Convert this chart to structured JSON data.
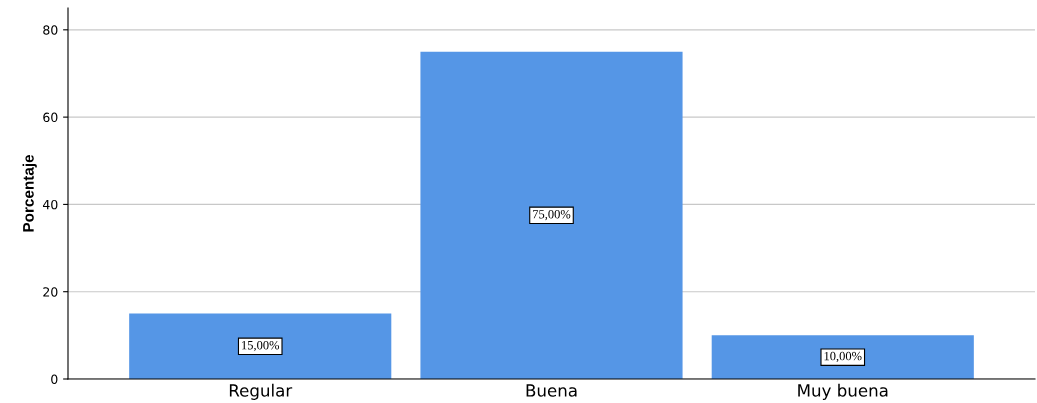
{
  "chart_data": {
    "type": "bar",
    "ylabel": "Porcentaje",
    "categories": [
      "Regular",
      "Buena",
      "Muy buena"
    ],
    "values": [
      15,
      75,
      10
    ],
    "value_labels": [
      "15,00%",
      "75,00%",
      "10,00%"
    ],
    "color": "#5596e6",
    "ylim": [
      0,
      85
    ],
    "yticks": [
      0,
      20,
      40,
      60,
      80
    ],
    "grid": "y"
  }
}
